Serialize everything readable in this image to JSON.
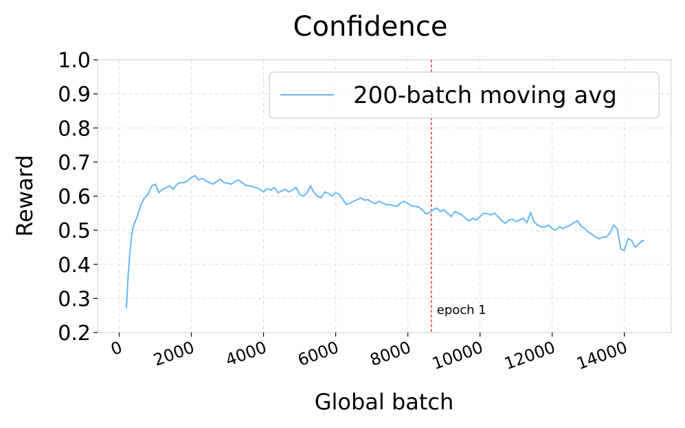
{
  "chart_data": {
    "type": "line",
    "title": "Confidence",
    "xlabel": "Global batch",
    "ylabel": "Reward",
    "xlim": [
      -600,
      15300
    ],
    "ylim": [
      0.2,
      1.0
    ],
    "xticks": [
      0,
      2000,
      4000,
      6000,
      8000,
      10000,
      12000,
      14000
    ],
    "xtick_labels": [
      "0",
      "2000",
      "4000",
      "6000",
      "8000",
      "10000",
      "12000",
      "14000"
    ],
    "yticks": [
      0.2,
      0.3,
      0.4,
      0.5,
      0.6,
      0.7,
      0.8,
      0.9,
      1.0
    ],
    "ytick_labels": [
      "0.2",
      "0.3",
      "0.4",
      "0.5",
      "0.6",
      "0.7",
      "0.8",
      "0.9",
      "1.0"
    ],
    "grid": true,
    "legend_position": "top-right",
    "series": [
      {
        "name": "200-batch moving avg",
        "color": "#64b5f6",
        "x": [
          200,
          250,
          300,
          350,
          400,
          500,
          600,
          700,
          800,
          900,
          1000,
          1100,
          1200,
          1300,
          1400,
          1500,
          1600,
          1700,
          1800,
          1900,
          2000,
          2100,
          2200,
          2300,
          2400,
          2500,
          2600,
          2700,
          2800,
          2900,
          3000,
          3100,
          3200,
          3300,
          3400,
          3500,
          3600,
          3700,
          3800,
          3900,
          4000,
          4100,
          4200,
          4300,
          4400,
          4500,
          4600,
          4700,
          4800,
          4900,
          5000,
          5100,
          5200,
          5300,
          5400,
          5500,
          5600,
          5700,
          5800,
          5900,
          6000,
          6100,
          6200,
          6300,
          6400,
          6500,
          6600,
          6700,
          6800,
          6900,
          7000,
          7100,
          7200,
          7300,
          7400,
          7500,
          7600,
          7700,
          7800,
          7900,
          8000,
          8100,
          8200,
          8300,
          8400,
          8500,
          8600,
          8700,
          8800,
          8900,
          9000,
          9100,
          9200,
          9300,
          9400,
          9500,
          9600,
          9700,
          9800,
          9900,
          10000,
          10100,
          10200,
          10300,
          10400,
          10500,
          10600,
          10700,
          10800,
          10900,
          11000,
          11100,
          11200,
          11300,
          11400,
          11500,
          11600,
          11700,
          11800,
          11900,
          12000,
          12100,
          12200,
          12300,
          12400,
          12500,
          12600,
          12700,
          12800,
          12900,
          13000,
          13100,
          13200,
          13300,
          13400,
          13500,
          13600,
          13700,
          13800,
          13900,
          14000,
          14100,
          14200,
          14300,
          14400,
          14500,
          14550
        ],
        "values": [
          0.272,
          0.37,
          0.44,
          0.49,
          0.515,
          0.54,
          0.575,
          0.595,
          0.605,
          0.63,
          0.635,
          0.61,
          0.62,
          0.625,
          0.63,
          0.62,
          0.635,
          0.64,
          0.64,
          0.645,
          0.655,
          0.66,
          0.648,
          0.652,
          0.645,
          0.64,
          0.635,
          0.643,
          0.65,
          0.64,
          0.638,
          0.635,
          0.642,
          0.648,
          0.64,
          0.632,
          0.63,
          0.628,
          0.625,
          0.62,
          0.612,
          0.622,
          0.618,
          0.625,
          0.61,
          0.615,
          0.62,
          0.612,
          0.618,
          0.626,
          0.605,
          0.6,
          0.608,
          0.63,
          0.61,
          0.6,
          0.595,
          0.612,
          0.608,
          0.6,
          0.61,
          0.605,
          0.59,
          0.575,
          0.58,
          0.585,
          0.59,
          0.595,
          0.588,
          0.59,
          0.582,
          0.578,
          0.585,
          0.58,
          0.575,
          0.575,
          0.572,
          0.57,
          0.58,
          0.585,
          0.578,
          0.572,
          0.57,
          0.568,
          0.56,
          0.548,
          0.552,
          0.56,
          0.565,
          0.555,
          0.56,
          0.55,
          0.54,
          0.555,
          0.55,
          0.545,
          0.535,
          0.528,
          0.535,
          0.53,
          0.54,
          0.55,
          0.548,
          0.545,
          0.55,
          0.54,
          0.528,
          0.52,
          0.53,
          0.532,
          0.525,
          0.53,
          0.535,
          0.522,
          0.552,
          0.525,
          0.515,
          0.51,
          0.51,
          0.515,
          0.505,
          0.5,
          0.51,
          0.505,
          0.51,
          0.515,
          0.522,
          0.528,
          0.512,
          0.505,
          0.495,
          0.488,
          0.48,
          0.475,
          0.48,
          0.48,
          0.492,
          0.515,
          0.505,
          0.445,
          0.44,
          0.475,
          0.47,
          0.45,
          0.46,
          0.47,
          0.468
        ]
      }
    ],
    "annotations": [
      {
        "type": "vline",
        "x": 8650,
        "color": "#e53935",
        "style": "dashed",
        "label": "epoch 1"
      }
    ]
  }
}
